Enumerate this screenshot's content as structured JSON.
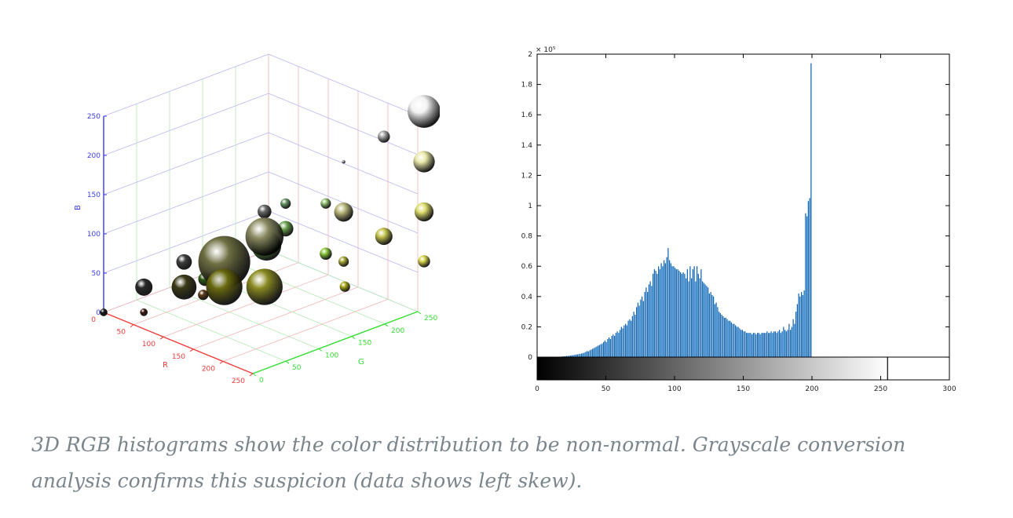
{
  "chart_data": [
    {
      "type": "scatter",
      "projection": "3d",
      "marker": "sphere-sized-by-count",
      "xlabel": "R",
      "ylabel": "G",
      "zlabel": "B",
      "xlim": [
        0,
        250
      ],
      "ylim": [
        0,
        250
      ],
      "zlim": [
        0,
        250
      ],
      "x_ticks": [
        "0",
        "50",
        "100",
        "150",
        "200",
        "250"
      ],
      "y_ticks": [
        "0",
        "50",
        "100",
        "150",
        "200",
        "250"
      ],
      "z_ticks": [
        "0",
        "50",
        "100",
        "150",
        "200",
        "250"
      ],
      "grid": true,
      "axis_colors": {
        "R": "#ee3b3b",
        "G": "#33dd33",
        "B": "#3b3bee"
      },
      "points": [
        {
          "r": 255,
          "g": 255,
          "b": 255,
          "size": 0.95,
          "color": "#f2f2f2"
        },
        {
          "r": 255,
          "g": 255,
          "b": 191,
          "size": 0.62,
          "color": "#e8e8a8"
        },
        {
          "r": 255,
          "g": 255,
          "b": 127,
          "size": 0.55,
          "color": "#dcdc6c"
        },
        {
          "r": 255,
          "g": 255,
          "b": 64,
          "size": 0.35,
          "color": "#d4d448"
        },
        {
          "r": 223,
          "g": 223,
          "b": 223,
          "size": 0.35,
          "color": "#a8a8a8"
        },
        {
          "r": 191,
          "g": 191,
          "b": 191,
          "size": 0.1,
          "color": "#8a8a8a"
        },
        {
          "r": 191,
          "g": 191,
          "b": 127,
          "size": 0.55,
          "color": "#b8b87a"
        },
        {
          "r": 223,
          "g": 223,
          "b": 96,
          "size": 0.5,
          "color": "#c4c44c"
        },
        {
          "r": 191,
          "g": 191,
          "b": 64,
          "size": 0.3,
          "color": "#a8a838"
        },
        {
          "r": 128,
          "g": 128,
          "b": 128,
          "size": 0.4,
          "color": "#6a6a6a"
        },
        {
          "r": 128,
          "g": 128,
          "b": 96,
          "size": 1.1,
          "color": "#8a8a62"
        },
        {
          "r": 128,
          "g": 160,
          "b": 96,
          "size": 0.45,
          "color": "#6aa04a"
        },
        {
          "r": 96,
          "g": 160,
          "b": 64,
          "size": 0.85,
          "color": "#58a038"
        },
        {
          "r": 96,
          "g": 96,
          "b": 64,
          "size": 1.5,
          "color": "#6e6e42"
        },
        {
          "r": 128,
          "g": 128,
          "b": 32,
          "size": 1.05,
          "color": "#8a8a22"
        },
        {
          "r": 96,
          "g": 96,
          "b": 32,
          "size": 1.05,
          "color": "#6a6a10"
        },
        {
          "r": 64,
          "g": 64,
          "b": 64,
          "size": 0.45,
          "color": "#3e3e3e"
        },
        {
          "r": 32,
          "g": 32,
          "b": 32,
          "size": 0.5,
          "color": "#2a2a2a"
        },
        {
          "r": 64,
          "g": 64,
          "b": 32,
          "size": 0.72,
          "color": "#3a3a18"
        },
        {
          "r": 64,
          "g": 96,
          "b": 32,
          "size": 0.4,
          "color": "#2e5a14"
        },
        {
          "r": 96,
          "g": 64,
          "b": 32,
          "size": 0.3,
          "color": "#5a3a18"
        },
        {
          "r": 160,
          "g": 192,
          "b": 64,
          "size": 0.35,
          "color": "#8ac83a"
        },
        {
          "r": 192,
          "g": 192,
          "b": 32,
          "size": 0.3,
          "color": "#a8a818"
        },
        {
          "r": 128,
          "g": 160,
          "b": 128,
          "size": 0.3,
          "color": "#6a9a6a"
        },
        {
          "r": 160,
          "g": 192,
          "b": 128,
          "size": 0.3,
          "color": "#90c070"
        },
        {
          "r": 0,
          "g": 0,
          "b": 0,
          "size": 0.22,
          "color": "#181818"
        },
        {
          "r": 32,
          "g": 32,
          "b": 0,
          "size": 0.22,
          "color": "#401a10"
        }
      ]
    },
    {
      "type": "bar",
      "title": "",
      "xlabel": "",
      "ylabel": "",
      "xlim": [
        0,
        300
      ],
      "ylim": [
        -0.15,
        2
      ],
      "y_multiplier": "× 10⁵",
      "x_ticks": [
        "0",
        "50",
        "100",
        "150",
        "200",
        "250",
        "300"
      ],
      "y_ticks": [
        "0",
        "0.2",
        "0.4",
        "0.6",
        "0.8",
        "1",
        "1.2",
        "1.4",
        "1.6",
        "1.8",
        "2"
      ],
      "bar_color": "#0a64b4",
      "colorbar": {
        "from": "#000000",
        "to": "#ffffff",
        "range": [
          0,
          255
        ]
      },
      "x": "0..255 (intensity level)",
      "values": [
        0,
        0,
        0,
        0,
        0,
        0,
        0,
        0,
        0,
        0,
        0,
        0,
        0,
        0,
        0,
        0,
        0.003,
        0.003,
        0.005,
        0.005,
        0.006,
        0.008,
        0.008,
        0.01,
        0.011,
        0.012,
        0.013,
        0.015,
        0.017,
        0.018,
        0.02,
        0.022,
        0.024,
        0.026,
        0.03,
        0.035,
        0.04,
        0.038,
        0.045,
        0.05,
        0.055,
        0.06,
        0.065,
        0.07,
        0.075,
        0.08,
        0.085,
        0.09,
        0.1,
        0.11,
        0.1,
        0.12,
        0.13,
        0.12,
        0.14,
        0.15,
        0.14,
        0.16,
        0.17,
        0.16,
        0.18,
        0.2,
        0.19,
        0.21,
        0.22,
        0.21,
        0.24,
        0.25,
        0.24,
        0.27,
        0.3,
        0.28,
        0.33,
        0.36,
        0.34,
        0.38,
        0.4,
        0.37,
        0.43,
        0.46,
        0.43,
        0.48,
        0.5,
        0.47,
        0.55,
        0.58,
        0.57,
        0.55,
        0.6,
        0.58,
        0.62,
        0.6,
        0.64,
        0.62,
        0.66,
        0.72,
        0.64,
        0.62,
        0.6,
        0.6,
        0.59,
        0.58,
        0.58,
        0.57,
        0.56,
        0.55,
        0.56,
        0.55,
        0.52,
        0.58,
        0.5,
        0.6,
        0.52,
        0.58,
        0.6,
        0.5,
        0.6,
        0.55,
        0.52,
        0.58,
        0.5,
        0.49,
        0.48,
        0.47,
        0.46,
        0.42,
        0.43,
        0.41,
        0.4,
        0.35,
        0.36,
        0.33,
        0.3,
        0.29,
        0.28,
        0.27,
        0.26,
        0.26,
        0.25,
        0.24,
        0.24,
        0.23,
        0.22,
        0.22,
        0.21,
        0.2,
        0.2,
        0.19,
        0.18,
        0.18,
        0.17,
        0.17,
        0.16,
        0.16,
        0.16,
        0.16,
        0.15,
        0.16,
        0.16,
        0.15,
        0.16,
        0.16,
        0.15,
        0.16,
        0.16,
        0.16,
        0.16,
        0.17,
        0.16,
        0.16,
        0.17,
        0.16,
        0.17,
        0.17,
        0.16,
        0.17,
        0.18,
        0.16,
        0.17,
        0.2,
        0.18,
        0.17,
        0.18,
        0.22,
        0.18,
        0.2,
        0.25,
        0.22,
        0.3,
        0.35,
        0.42,
        0.4,
        0.43,
        0.41,
        0.44,
        0.95,
        0.93,
        1.03,
        1.05,
        1.94,
        0,
        0,
        0,
        0,
        0,
        0,
        0,
        0,
        0,
        0,
        0,
        0,
        0,
        0,
        0,
        0,
        0,
        0,
        0,
        0,
        0,
        0,
        0,
        0,
        0,
        0,
        0,
        0,
        0,
        0,
        0,
        0,
        0,
        0,
        0,
        0,
        0,
        0,
        0,
        0,
        0,
        0,
        0,
        0,
        0,
        0,
        0,
        0,
        0,
        0,
        0,
        0,
        0,
        0,
        0,
        0,
        0,
        0,
        0,
        0,
        0
      ]
    }
  ],
  "caption": "3D RGB histograms show the color distribution to be non-normal. Grayscale conversion analysis confirms this suspicion (data shows left skew)."
}
